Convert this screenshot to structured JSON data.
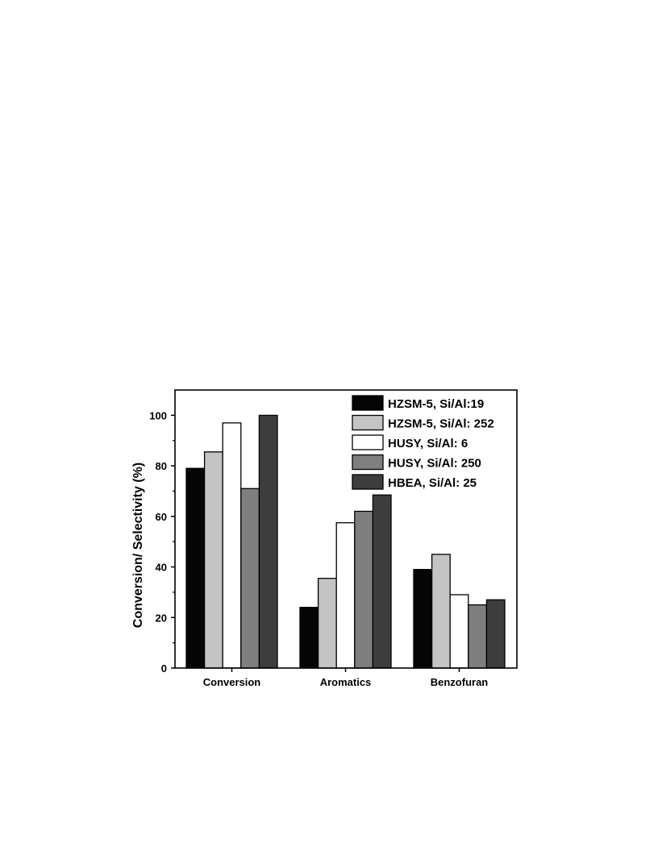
{
  "chart_data": {
    "type": "bar",
    "title": "",
    "xlabel": "",
    "ylabel": "Conversion/ Selectivity (%)",
    "ylim": [
      0,
      110
    ],
    "yticks": [
      0,
      20,
      40,
      60,
      80,
      100
    ],
    "grid": false,
    "legend_position": "top-right",
    "categories": [
      "Conversion",
      "Aromatics",
      "Benzofuran"
    ],
    "series": [
      {
        "name": "HZSM-5, Si/Al:19",
        "color": "#050505",
        "values": [
          79,
          24,
          39
        ]
      },
      {
        "name": "HZSM-5, Si/Al: 252",
        "color": "#c4c4c4",
        "values": [
          85.5,
          35.5,
          45
        ]
      },
      {
        "name": "HUSY, Si/Al: 6",
        "color": "#ffffff",
        "values": [
          97,
          57.5,
          29
        ]
      },
      {
        "name": "HUSY, Si/Al: 250",
        "color": "#7f7f7f",
        "values": [
          71,
          62,
          25
        ]
      },
      {
        "name": "HBEA, Si/Al: 25",
        "color": "#3d3d3d",
        "values": [
          100,
          68.5,
          27
        ]
      }
    ]
  }
}
